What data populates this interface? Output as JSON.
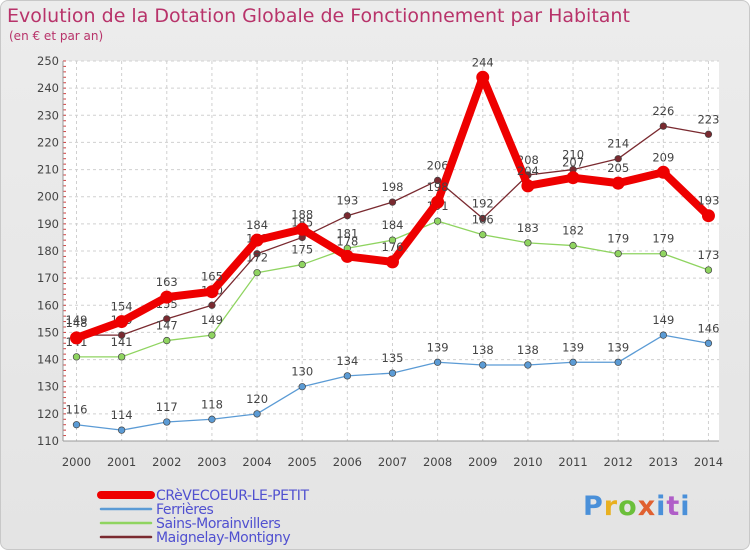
{
  "header": {
    "title": "Evolution de la Dotation Globale de Fonctionnement par Habitant",
    "subtitle": "(en € et par an)"
  },
  "logo": {
    "text": "Proxiti",
    "parts": [
      "P",
      "r",
      "o",
      "x",
      "i",
      "t",
      "i"
    ]
  },
  "chart_data": {
    "type": "line",
    "title": "Evolution de la Dotation Globale de Fonctionnement par Habitant",
    "subtitle": "(en € et par an)",
    "xlabel": "",
    "ylabel": "",
    "x": [
      "2000",
      "2001",
      "2002",
      "2003",
      "2004",
      "2005",
      "2006",
      "2007",
      "2008",
      "2009",
      "2010",
      "2011",
      "2012",
      "2013",
      "2014"
    ],
    "ylim": [
      110,
      250
    ],
    "yticks": [
      110,
      120,
      130,
      140,
      150,
      160,
      170,
      180,
      190,
      200,
      210,
      220,
      230,
      240,
      250
    ],
    "grid": true,
    "legend_position": "bottom-left",
    "series": [
      {
        "name": "Maignelay-Montigny",
        "color": "#7a2a30",
        "values": [
          149,
          149,
          155,
          160,
          179,
          185,
          193,
          198,
          206,
          192,
          208,
          210,
          214,
          226,
          223
        ]
      },
      {
        "name": "Sains-Morainvillers",
        "color": "#8fd460",
        "values": [
          141,
          141,
          147,
          149,
          172,
          175,
          181,
          184,
          191,
          186,
          183,
          182,
          179,
          179,
          173
        ]
      },
      {
        "name": "Ferrières",
        "color": "#5b9bd5",
        "values": [
          116,
          114,
          117,
          118,
          120,
          130,
          134,
          135,
          139,
          138,
          138,
          139,
          139,
          149,
          146
        ]
      },
      {
        "name": "CRèVECOEUR-LE-PETIT",
        "color": "#ee0000",
        "values": [
          148,
          154,
          163,
          165,
          184,
          188,
          178,
          176,
          198,
          244,
          204,
          207,
          205,
          209,
          193
        ]
      }
    ]
  }
}
